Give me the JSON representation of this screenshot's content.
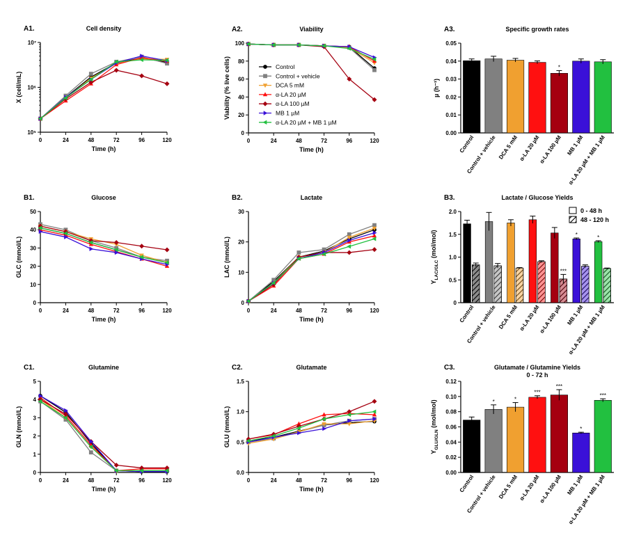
{
  "chart_data": [
    {
      "id": "A1",
      "panel_label": "A1.",
      "type": "line",
      "title": "Cell density",
      "xlabel": "Time (h)",
      "ylabel": "X (cell/mL)",
      "yscale": "log",
      "ytick_labels": [
        "10⁵",
        "10⁶",
        "10⁷"
      ],
      "ytick_values": [
        100000,
        1000000,
        10000000
      ],
      "xticks": [
        0,
        24,
        48,
        72,
        96,
        120
      ],
      "xlim": [
        0,
        120
      ],
      "ylim": [
        100000,
        10000000
      ],
      "x": [
        0,
        24,
        48,
        72,
        96,
        120
      ],
      "series": [
        {
          "name": "Control",
          "values": [
            200000,
            600000,
            1700000,
            3500000,
            4500000,
            3600000
          ]
        },
        {
          "name": "Control + vehicle",
          "values": [
            200000,
            650000,
            2000000,
            3700000,
            4800000,
            3400000
          ]
        },
        {
          "name": "DCA 5 mM",
          "values": [
            200000,
            580000,
            1600000,
            3400000,
            4300000,
            4200000
          ]
        },
        {
          "name": "α-LA 20 µM",
          "values": [
            200000,
            500000,
            1200000,
            3200000,
            4600000,
            3800000
          ]
        },
        {
          "name": "α-LA 100 µM",
          "values": [
            200000,
            550000,
            1300000,
            2400000,
            1800000,
            1200000
          ]
        },
        {
          "name": "MB 1 µM",
          "values": [
            200000,
            600000,
            1500000,
            3500000,
            5000000,
            3900000
          ]
        },
        {
          "name": "α-LA 20 µM + MB 1 µM",
          "values": [
            200000,
            580000,
            1500000,
            3700000,
            4100000,
            4000000
          ]
        }
      ]
    },
    {
      "id": "A2",
      "panel_label": "A2.",
      "type": "line",
      "title": "Viability",
      "xlabel": "Time (h)",
      "ylabel": "Viability (% live cells)",
      "xticks": [
        0,
        24,
        48,
        72,
        96,
        120
      ],
      "xlim": [
        0,
        120
      ],
      "ylim": [
        0,
        100
      ],
      "yticks": [
        0,
        20,
        40,
        60,
        80,
        100
      ],
      "legend_position": "left",
      "x": [
        0,
        24,
        48,
        72,
        96,
        120
      ],
      "series": [
        {
          "name": "Control",
          "values": [
            99,
            98,
            98,
            97,
            96,
            72
          ]
        },
        {
          "name": "Control + vehicle",
          "values": [
            99,
            98,
            98,
            97,
            95,
            70
          ]
        },
        {
          "name": "DCA 5 mM",
          "values": [
            99,
            98,
            98,
            97,
            95,
            78
          ]
        },
        {
          "name": "α-LA 20 µM",
          "values": [
            99,
            98,
            98,
            97,
            96,
            80
          ]
        },
        {
          "name": "α-LA 100 µM",
          "values": [
            99,
            98,
            98,
            96,
            60,
            37
          ]
        },
        {
          "name": "MB 1 µM",
          "values": [
            99,
            98,
            98,
            97,
            96,
            84
          ]
        },
        {
          "name": "α-LA 20 µM + MB 1 µM",
          "values": [
            99,
            98,
            98,
            97,
            94,
            82
          ]
        }
      ]
    },
    {
      "id": "A3",
      "panel_label": "A3.",
      "type": "bar",
      "title": "Specific growth rates",
      "ylabel": "µ (h⁻¹)",
      "ylim": [
        0,
        0.05
      ],
      "yticks": [
        0,
        0.01,
        0.02,
        0.03,
        0.04,
        0.05
      ],
      "ytick_labels": [
        "0.00",
        "0.01",
        "0.02",
        "0.03",
        "0.04",
        "0.05"
      ],
      "categories": [
        "Control",
        "Control + vehicle",
        "DCA 5 mM",
        "α-LA 20 µM",
        "α-LA 100 µM",
        "MB 1 µM",
        "α-LA 20 µM + MB 1 µM"
      ],
      "values": [
        0.0402,
        0.0412,
        0.0405,
        0.0393,
        0.0332,
        0.04,
        0.0396
      ],
      "errors": [
        0.001,
        0.0015,
        0.001,
        0.0008,
        0.0015,
        0.0012,
        0.0012
      ],
      "annotations": [
        "",
        "",
        "",
        "",
        "*",
        "",
        ""
      ]
    },
    {
      "id": "B1",
      "panel_label": "B1.",
      "type": "line",
      "title": "Glucose",
      "xlabel": "Time (h)",
      "ylabel": "GLC (mmol/L)",
      "xticks": [
        0,
        24,
        48,
        72,
        96,
        120
      ],
      "xlim": [
        0,
        120
      ],
      "ylim": [
        0,
        50
      ],
      "yticks": [
        0,
        10,
        20,
        30,
        40,
        50
      ],
      "x": [
        0,
        24,
        48,
        72,
        96,
        120
      ],
      "series": [
        {
          "name": "Control",
          "values": [
            41,
            38,
            33,
            29,
            25,
            22
          ]
        },
        {
          "name": "Control + vehicle",
          "values": [
            43,
            40,
            34,
            30,
            25,
            23
          ]
        },
        {
          "name": "DCA 5 mM",
          "values": [
            42,
            39,
            35,
            32,
            26,
            22
          ]
        },
        {
          "name": "α-LA 20 µM",
          "values": [
            40,
            37,
            32,
            28,
            24,
            20
          ]
        },
        {
          "name": "α-LA 100 µM",
          "values": [
            42,
            39,
            34,
            33,
            31,
            29
          ]
        },
        {
          "name": "MB 1 µM",
          "values": [
            39,
            36,
            29.5,
            27.5,
            24,
            21
          ]
        },
        {
          "name": "α-LA 20 µM + MB 1 µM",
          "values": [
            41,
            38,
            33,
            29,
            25,
            22
          ]
        }
      ]
    },
    {
      "id": "B2",
      "panel_label": "B2.",
      "type": "line",
      "title": "Lactate",
      "xlabel": "Time (h)",
      "ylabel": "LAC (mmol/L)",
      "xticks": [
        0,
        24,
        48,
        72,
        96,
        120
      ],
      "xlim": [
        0,
        120
      ],
      "ylim": [
        0,
        30
      ],
      "yticks": [
        0,
        10,
        20,
        30
      ],
      "x": [
        0,
        24,
        48,
        72,
        96,
        120
      ],
      "series": [
        {
          "name": "Control",
          "values": [
            0.5,
            7,
            15,
            17,
            21,
            24
          ]
        },
        {
          "name": "Control + vehicle",
          "values": [
            0.5,
            7.5,
            16.5,
            17.5,
            22.5,
            25.5
          ]
        },
        {
          "name": "DCA 5 mM",
          "values": [
            0.5,
            6.5,
            15,
            16.5,
            21.5,
            24.5
          ]
        },
        {
          "name": "α-LA 20 µM",
          "values": [
            0.5,
            5.5,
            14.5,
            16,
            20,
            22
          ]
        },
        {
          "name": "α-LA 100 µM",
          "values": [
            0.5,
            6,
            15,
            16.5,
            16.5,
            17.5
          ]
        },
        {
          "name": "MB 1 µM",
          "values": [
            0.5,
            6.5,
            14.5,
            16.5,
            20.5,
            23
          ]
        },
        {
          "name": "α-LA 20 µM + MB 1 µM",
          "values": [
            0.5,
            6.5,
            14.5,
            16,
            18.5,
            21
          ]
        }
      ]
    },
    {
      "id": "B3",
      "panel_label": "B3.",
      "type": "bar",
      "title": "Lactate / Glucose Yields",
      "ylabel": "Y_LAC/GLC (mol/mol)",
      "ylabel_main": "Y",
      "ylabel_sub": "LAC/GLC",
      "ylabel_unit": " (mol/mol)",
      "ylim": [
        0,
        2
      ],
      "yticks": [
        0,
        0.5,
        1,
        1.5,
        2
      ],
      "ytick_labels": [
        "0",
        "0.5",
        "1.0",
        "1.5",
        "2.0"
      ],
      "categories": [
        "Control",
        "Control + vehicle",
        "DCA 5 mM",
        "α-LA 20 µM",
        "α-LA 100 µM",
        "MB 1 µM",
        "α-LA 20 µM + MB 1 µM"
      ],
      "legend": [
        "0 - 48 h",
        "48 - 120 h"
      ],
      "legend_position": "top-right",
      "series": [
        {
          "name": "0 - 48 h",
          "values": [
            1.73,
            1.78,
            1.75,
            1.82,
            1.53,
            1.4,
            1.34
          ],
          "errors": [
            0.08,
            0.2,
            0.07,
            0.08,
            0.12,
            0.02,
            0.02
          ],
          "annotations": [
            "",
            "",
            "",
            "",
            "",
            "*",
            "*"
          ]
        },
        {
          "name": "48 - 120 h",
          "values": [
            0.83,
            0.81,
            0.76,
            0.9,
            0.52,
            0.8,
            0.75
          ],
          "errors": [
            0.04,
            0.05,
            0.01,
            0.02,
            0.1,
            0.03,
            0.01
          ],
          "annotations": [
            "",
            "",
            "",
            "",
            "***",
            "",
            ""
          ]
        }
      ]
    },
    {
      "id": "C1",
      "panel_label": "C1.",
      "type": "line",
      "title": "Glutamine",
      "xlabel": "Time (h)",
      "ylabel": "GLN (mmol/L)",
      "xticks": [
        0,
        24,
        48,
        72,
        96,
        120
      ],
      "xlim": [
        0,
        120
      ],
      "ylim": [
        0,
        5
      ],
      "yticks": [
        0,
        1,
        2,
        3,
        4,
        5
      ],
      "x": [
        0,
        24,
        48,
        72,
        96,
        120
      ],
      "series": [
        {
          "name": "Control",
          "values": [
            4.2,
            3.3,
            1.6,
            0.1,
            0.05,
            0.05
          ]
        },
        {
          "name": "Control + vehicle",
          "values": [
            3.9,
            2.9,
            1.1,
            0.1,
            0.1,
            0.1
          ]
        },
        {
          "name": "DCA 5 mM",
          "values": [
            4.0,
            3.0,
            1.4,
            0.1,
            0.1,
            0.1
          ]
        },
        {
          "name": "α-LA 20 µM",
          "values": [
            4.1,
            3.1,
            1.5,
            0.1,
            0.2,
            0.2
          ]
        },
        {
          "name": "α-LA 100 µM",
          "values": [
            4.0,
            3.2,
            1.7,
            0.4,
            0.25,
            0.25
          ]
        },
        {
          "name": "MB 1 µM",
          "values": [
            4.2,
            3.4,
            1.7,
            0.1,
            0.05,
            0.05
          ]
        },
        {
          "name": "α-LA 20 µM + MB 1 µM",
          "values": [
            3.9,
            3.0,
            1.4,
            0.1,
            0.1,
            0.1
          ]
        }
      ]
    },
    {
      "id": "C2",
      "panel_label": "C2.",
      "type": "line",
      "title": "Glutamate",
      "xlabel": "Time (h)",
      "ylabel": "GLU (mmol/L)",
      "xticks": [
        0,
        24,
        48,
        72,
        96,
        120
      ],
      "xlim": [
        0,
        120
      ],
      "ylim": [
        0,
        1.5
      ],
      "yticks": [
        0,
        0.5,
        1,
        1.5
      ],
      "ytick_labels": [
        "0.0",
        "0.5",
        "1.0",
        "1.5"
      ],
      "x": [
        0,
        24,
        48,
        72,
        96,
        120
      ],
      "series": [
        {
          "name": "Control",
          "values": [
            0.52,
            0.58,
            0.68,
            0.78,
            0.82,
            0.84
          ]
        },
        {
          "name": "Control + vehicle",
          "values": [
            0.5,
            0.56,
            0.67,
            0.78,
            0.85,
            0.88
          ]
        },
        {
          "name": "DCA 5 mM",
          "values": [
            0.48,
            0.55,
            0.67,
            0.8,
            0.8,
            0.85
          ]
        },
        {
          "name": "α-LA 20 µM",
          "values": [
            0.55,
            0.62,
            0.8,
            0.95,
            0.97,
            0.95
          ]
        },
        {
          "name": "α-LA 100 µM",
          "values": [
            0.55,
            0.63,
            0.76,
            0.88,
            1.0,
            1.17
          ]
        },
        {
          "name": "MB 1 µM",
          "values": [
            0.5,
            0.58,
            0.65,
            0.72,
            0.85,
            0.88
          ]
        },
        {
          "name": "α-LA 20 µM + MB 1 µM",
          "values": [
            0.52,
            0.6,
            0.73,
            0.88,
            0.95,
            1.0
          ]
        }
      ]
    },
    {
      "id": "C3",
      "panel_label": "C3.",
      "type": "bar",
      "title": "Glutamate / Glutamine Yields",
      "subtitle": "0 - 72 h",
      "ylabel": "Y_GLU/GLN (mol/mol)",
      "ylabel_main": "Y",
      "ylabel_sub": "GLU/GLN",
      "ylabel_unit": " (mol/mol)",
      "ylim": [
        0,
        0.12
      ],
      "yticks": [
        0,
        0.02,
        0.04,
        0.06,
        0.08,
        0.1,
        0.12
      ],
      "ytick_labels": [
        "0.00",
        "0.02",
        "0.04",
        "0.06",
        "0.08",
        "0.10",
        "0.12"
      ],
      "categories": [
        "Control",
        "Control + vehicle",
        "DCA 5 mM",
        "α-LA 20 µM",
        "α-LA 100 µM",
        "MB 1 µM",
        "α-LA 20 µM + MB 1 µM"
      ],
      "values": [
        0.069,
        0.083,
        0.086,
        0.099,
        0.102,
        0.052,
        0.095
      ],
      "errors": [
        0.004,
        0.006,
        0.006,
        0.002,
        0.007,
        0.001,
        0.002
      ],
      "annotations": [
        "",
        "*",
        "*",
        "***",
        "***",
        "*",
        "***"
      ]
    }
  ],
  "legend": {
    "entries": [
      "Control",
      "Control + vehicle",
      "DCA 5 mM",
      "α-LA 20 µM",
      "α-LA 100 µM",
      "MB 1 µM",
      "α-LA 20 µM + MB 1 µM"
    ]
  },
  "colors": {
    "Control": "#000000",
    "Control + vehicle": "#808080",
    "DCA 5 mM": "#f0a030",
    "α-LA 20 µM": "#ff1010",
    "α-LA 100 µM": "#a50010",
    "MB 1 µM": "#3a10d8",
    "α-LA 20 µM + MB 1 µM": "#22c040"
  },
  "markers": {
    "Control": "circle",
    "Control + vehicle": "square",
    "DCA 5 mM": "triangle-down",
    "α-LA 20 µM": "triangle-up",
    "α-LA 100 µM": "diamond",
    "MB 1 µM": "triangle-right",
    "α-LA 20 µM + MB 1 µM": "triangle-left"
  }
}
